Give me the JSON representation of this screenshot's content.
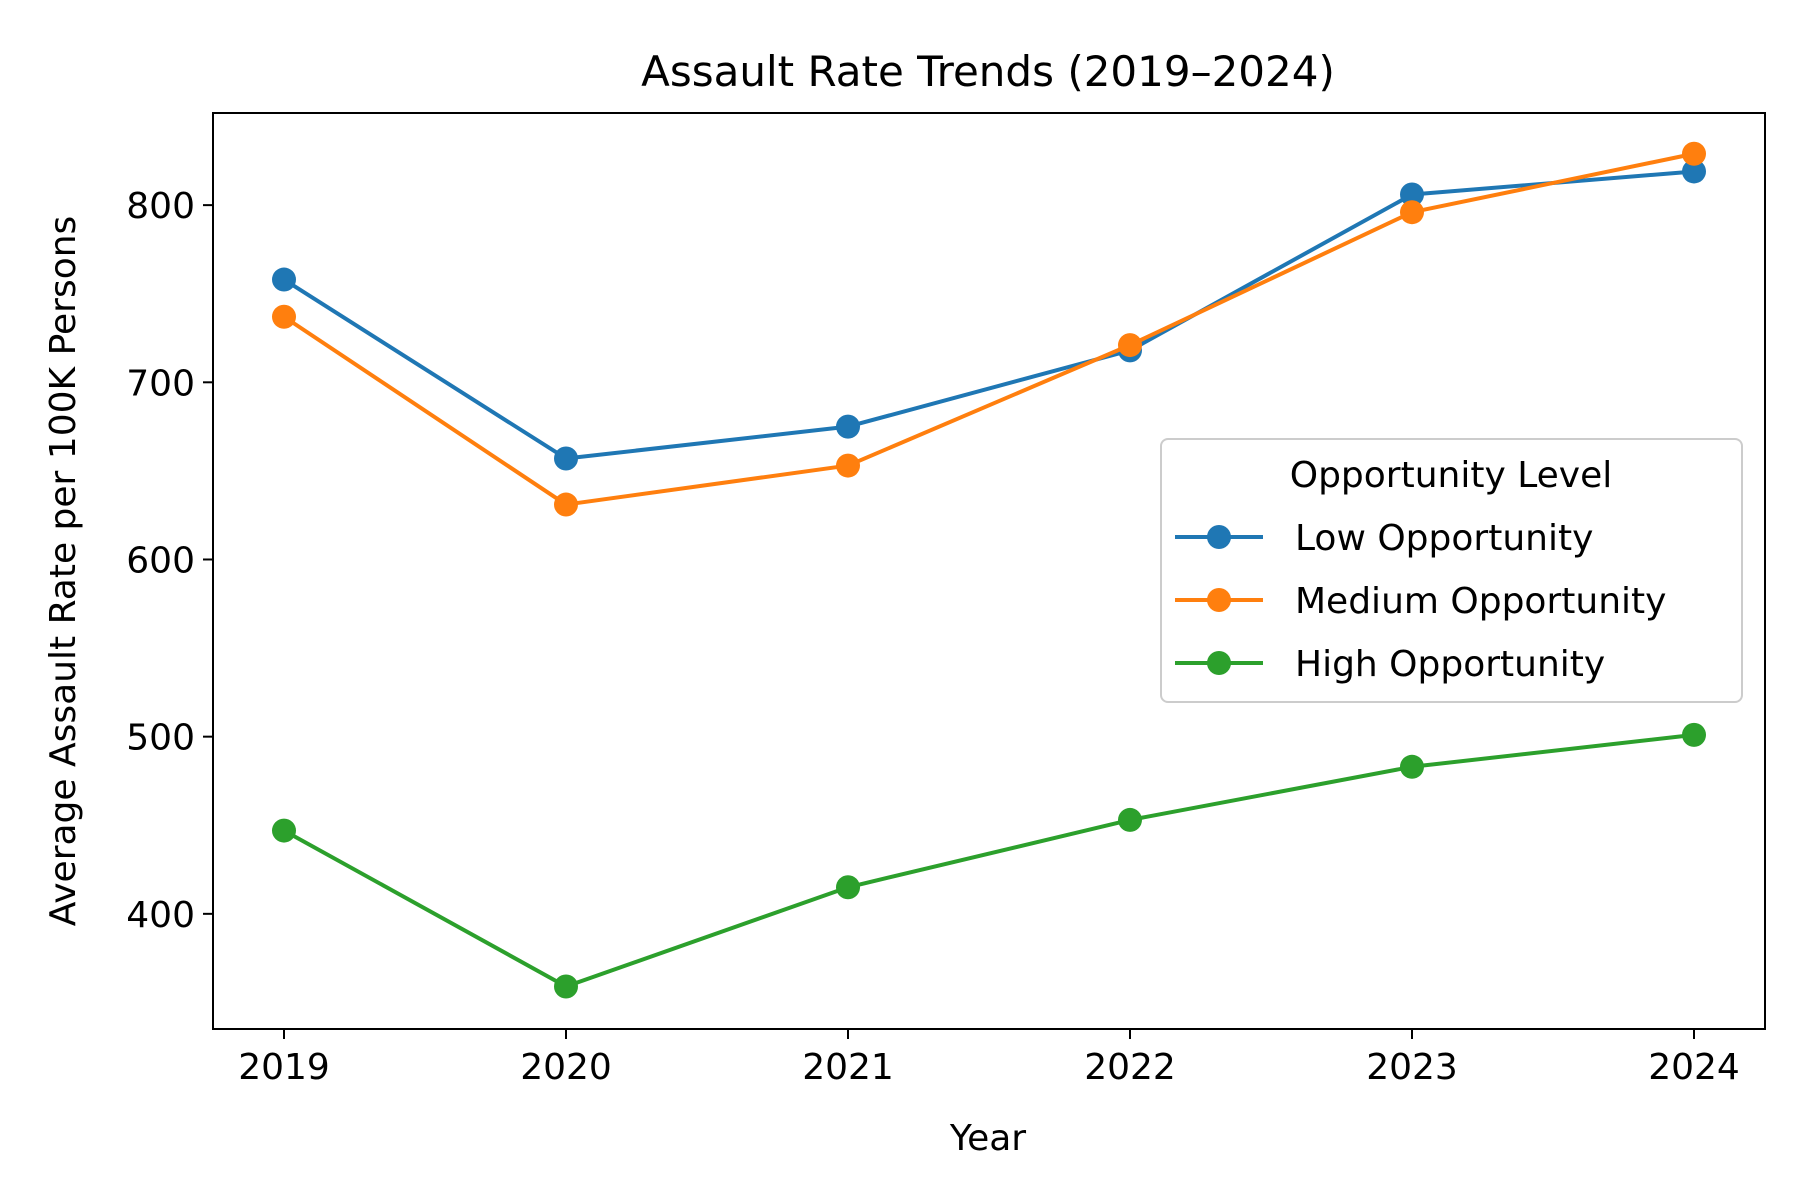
{
  "chart_data": {
    "type": "line",
    "title": "Assault Rate Trends (2019–2024)",
    "xlabel": "Year",
    "ylabel": "Average Assault Rate per 100K Persons",
    "x": [
      "2019",
      "2020",
      "2021",
      "2022",
      "2023",
      "2024"
    ],
    "ylim": [
      335,
      852
    ],
    "yticks": [
      "400",
      "500",
      "600",
      "700",
      "800"
    ],
    "grid": false,
    "legend": {
      "title": "Opportunity Level",
      "placement": "center-right"
    },
    "series": [
      {
        "name": "Low Opportunity",
        "color": "#1f77b4",
        "values": [
          758,
          657,
          675,
          718,
          806,
          819
        ]
      },
      {
        "name": "Medium Opportunity",
        "color": "#ff7f0e",
        "values": [
          737,
          631,
          653,
          721,
          796,
          829
        ]
      },
      {
        "name": "High Opportunity",
        "color": "#2ca02c",
        "values": [
          447,
          359,
          415,
          453,
          483,
          501
        ]
      }
    ]
  }
}
